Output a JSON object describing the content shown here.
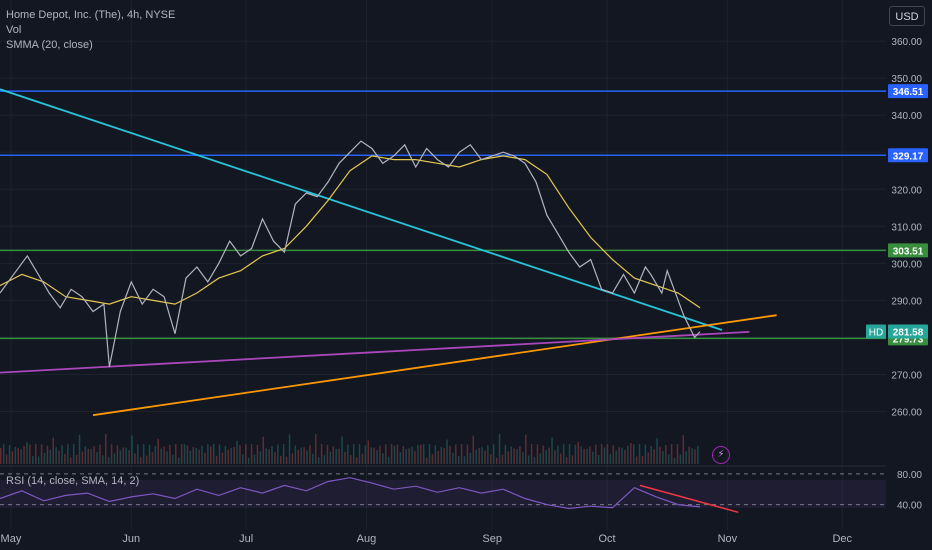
{
  "header": {
    "title": "Home Depot, Inc. (The), 4h, NYSE",
    "vol_label": "Vol",
    "smma_label": "SMMA (20, close)",
    "currency": "USD"
  },
  "rsi": {
    "label": "RSI (14, close, SMA, 14, 2)",
    "axis_labels": [
      "80.00",
      "40.00"
    ]
  },
  "chart_data": {
    "type": "line",
    "instrument": "HD",
    "price_axis": [
      "360.00",
      "350.00",
      "340.00",
      "330.00",
      "320.00",
      "310.00",
      "300.00",
      "290.00",
      "280.00",
      "270.00",
      "260.00"
    ],
    "time_axis": [
      "May",
      "Jun",
      "Jul",
      "Aug",
      "Sep",
      "Oct",
      "Nov",
      "Dec"
    ],
    "ylim": [
      255,
      363
    ],
    "x_months": [
      {
        "label": "May",
        "x": 0
      },
      {
        "label": "Jun",
        "x": 22
      },
      {
        "label": "Jul",
        "x": 43
      },
      {
        "label": "Aug",
        "x": 65
      },
      {
        "label": "Sep",
        "x": 88
      },
      {
        "label": "Oct",
        "x": 109
      },
      {
        "label": "Nov",
        "x": 131
      },
      {
        "label": "Dec",
        "x": 152
      }
    ],
    "xlim": [
      -2,
      160
    ],
    "price_series": {
      "name": "HD",
      "x": [
        -2,
        1,
        3,
        5,
        7,
        9,
        11,
        13,
        15,
        17,
        18,
        20,
        22,
        24,
        26,
        28,
        30,
        32,
        34,
        36,
        38,
        40,
        42,
        44,
        46,
        48,
        50,
        52,
        54,
        56,
        58,
        60,
        62,
        64,
        66,
        68,
        70,
        72,
        74,
        76,
        78,
        80,
        82,
        84,
        86,
        88,
        90,
        92,
        94,
        96,
        98,
        100,
        102,
        104,
        106,
        108,
        110,
        112,
        114,
        116,
        117,
        119,
        120,
        121,
        122,
        123,
        124,
        125,
        126
      ],
      "y": [
        292,
        298,
        302,
        297,
        292,
        288,
        293,
        291,
        287,
        289,
        272,
        287,
        295,
        289,
        293,
        291,
        281,
        296,
        299,
        295,
        300,
        306,
        302,
        304,
        312,
        306,
        303,
        316,
        319,
        318,
        322,
        327,
        330,
        333,
        331,
        327,
        329,
        332,
        326,
        331,
        328,
        326,
        330,
        332,
        328,
        329,
        330,
        329,
        327,
        322,
        313,
        308,
        303,
        299,
        301,
        293,
        292,
        297,
        292,
        299,
        297,
        292,
        298,
        294,
        290,
        286,
        283,
        280,
        281.58
      ]
    },
    "smma_series": {
      "name": "SMMA (20, close)",
      "x": [
        -2,
        2,
        6,
        10,
        14,
        18,
        22,
        26,
        30,
        34,
        38,
        42,
        46,
        50,
        54,
        58,
        62,
        66,
        70,
        74,
        78,
        82,
        86,
        90,
        94,
        98,
        102,
        106,
        110,
        114,
        118,
        122,
        126
      ],
      "y": [
        294,
        297,
        295,
        291,
        290,
        289,
        291,
        290,
        289,
        292,
        296,
        298,
        302,
        304,
        310,
        317,
        325,
        329,
        328,
        328,
        327,
        326,
        328,
        329,
        328,
        324,
        315,
        307,
        301,
        296,
        294,
        292,
        288
      ]
    },
    "levels": [
      {
        "value": "346.51",
        "color": "#2962ff"
      },
      {
        "value": "329.17",
        "color": "#2962ff"
      },
      {
        "value": "303.51",
        "color": "#388e3c"
      },
      {
        "value": "279.73",
        "color": "#388e3c"
      }
    ],
    "last_price": {
      "label": "HD",
      "value": "281.58"
    },
    "trendlines": [
      {
        "name": "descending",
        "color": "#26c6da",
        "from": [
          -2,
          347
        ],
        "to": [
          130,
          282
        ]
      },
      {
        "name": "ascending",
        "color": "#ff9800",
        "from": [
          15,
          259
        ],
        "to": [
          140,
          286
        ]
      },
      {
        "name": "support",
        "color": "#ab47bc",
        "from": [
          -2,
          270.5
        ],
        "to": [
          135,
          281.5
        ]
      }
    ],
    "rsi_ylim": [
      20,
      85
    ],
    "rsi_series": {
      "name": "RSI",
      "x": [
        -2,
        2,
        6,
        10,
        14,
        18,
        22,
        26,
        30,
        34,
        38,
        42,
        46,
        50,
        54,
        58,
        62,
        66,
        70,
        74,
        78,
        82,
        86,
        90,
        94,
        98,
        102,
        106,
        110,
        114,
        118,
        122,
        126
      ],
      "y": [
        48,
        58,
        45,
        52,
        55,
        44,
        50,
        54,
        48,
        60,
        52,
        62,
        55,
        65,
        58,
        70,
        75,
        68,
        60,
        64,
        56,
        62,
        55,
        60,
        48,
        40,
        35,
        38,
        36,
        62,
        50,
        40,
        37
      ]
    },
    "rsi_trendline": {
      "color": "#f23645",
      "from": [
        115,
        65
      ],
      "to": [
        133,
        30
      ]
    }
  }
}
